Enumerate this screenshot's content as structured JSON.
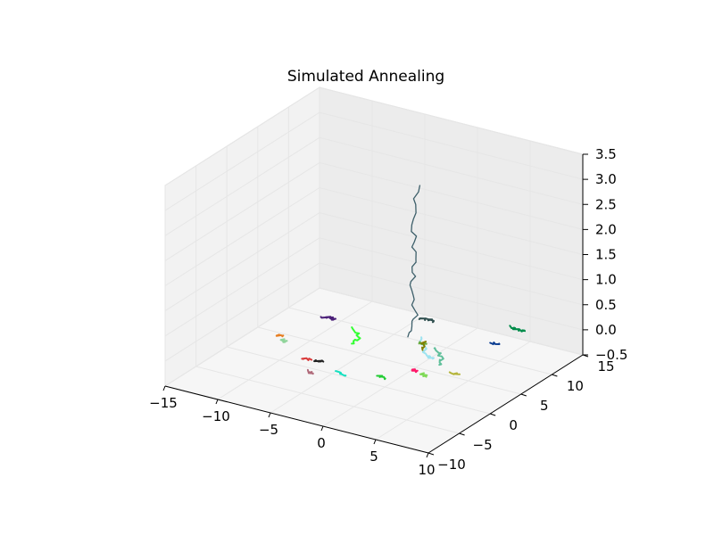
{
  "chart_data": {
    "type": "line3d",
    "title": "Simulated Annealing",
    "xlabel": "",
    "ylabel": "",
    "zlabel": "",
    "xlim": [
      -15,
      10
    ],
    "ylim": [
      -10,
      15
    ],
    "zlim": [
      -0.5,
      3.5
    ],
    "xticks": [
      "−15",
      "−10",
      "−5",
      "0",
      "5",
      "10"
    ],
    "yticks": [
      "−10",
      "−5",
      "0",
      "5",
      "10",
      "15"
    ],
    "zticks": [
      "−0.5",
      "0.0",
      "0.5",
      "1.0",
      "1.5",
      "2.0",
      "2.5",
      "3.0",
      "3.5"
    ],
    "grid": true,
    "series": [
      {
        "color": "#3d5f6a",
        "values": [
          [
            0.5,
            4.5,
            3.2
          ],
          [
            0.2,
            4.2,
            2.4
          ],
          [
            0.6,
            3.9,
            1.8
          ],
          [
            0.1,
            4.1,
            1.2
          ],
          [
            0.8,
            3.6,
            0.7
          ],
          [
            0.0,
            3.7,
            0.2
          ]
        ]
      },
      {
        "color": "#9de3f0",
        "values": [
          [
            1.8,
            2.6,
            0.4
          ],
          [
            2.6,
            2.3,
            0.1
          ],
          [
            2.9,
            2.8,
            0.0
          ]
        ]
      },
      {
        "color": "#5fbf9a",
        "values": [
          [
            3.4,
            2.2,
            0.3
          ],
          [
            3.9,
            2.6,
            0.1
          ],
          [
            4.0,
            2.0,
            0.0
          ]
        ]
      },
      {
        "color": "#2f4f4f",
        "values": [
          [
            -2.2,
            9.5,
            0.0
          ],
          [
            -1.6,
            9.8,
            0.0
          ],
          [
            -1.0,
            9.6,
            0.0
          ]
        ]
      },
      {
        "color": "#4b1f78",
        "values": [
          [
            -9.0,
            5.2,
            0.0
          ],
          [
            -8.4,
            5.6,
            0.0
          ],
          [
            -8.0,
            5.3,
            0.0
          ]
        ]
      },
      {
        "color": "#008c4a",
        "values": [
          [
            4.8,
            12.2,
            0.0
          ],
          [
            5.6,
            12.0,
            0.0
          ],
          [
            6.2,
            12.1,
            0.0
          ]
        ]
      },
      {
        "color": "#0b3d91",
        "values": [
          [
            5.2,
            8.2,
            0.0
          ],
          [
            5.8,
            8.6,
            0.0
          ]
        ]
      },
      {
        "color": "#e67e22",
        "values": [
          [
            -10.2,
            -0.2,
            0.0
          ],
          [
            -9.7,
            0.1,
            0.0
          ]
        ]
      },
      {
        "color": "#8fd49a",
        "values": [
          [
            -9.4,
            -0.6,
            0.0
          ],
          [
            -8.9,
            -1.0,
            0.0
          ]
        ]
      },
      {
        "color": "#33ff33",
        "values": [
          [
            -4.5,
            2.2,
            0.3
          ],
          [
            -3.8,
            2.4,
            0.1
          ],
          [
            -4.2,
            1.8,
            0.0
          ]
        ]
      },
      {
        "color": "#d93a3a",
        "values": [
          [
            -5.9,
            -3.2,
            0.0
          ],
          [
            -5.2,
            -3.0,
            0.0
          ]
        ]
      },
      {
        "color": "#222222",
        "values": [
          [
            -4.8,
            -3.0,
            0.0
          ],
          [
            -4.2,
            -2.8,
            0.0
          ]
        ]
      },
      {
        "color": "#b06a7a",
        "values": [
          [
            -4.2,
            -5.2,
            0.0
          ],
          [
            -3.6,
            -5.5,
            0.0
          ]
        ]
      },
      {
        "color": "#14e0c0",
        "values": [
          [
            -2.2,
            -4.0,
            0.0
          ],
          [
            -1.2,
            -4.3,
            0.0
          ]
        ]
      },
      {
        "color": "#22cc33",
        "values": [
          [
            1.0,
            -2.8,
            0.0
          ],
          [
            1.8,
            -3.0,
            0.0
          ]
        ]
      },
      {
        "color": "#ff1a6a",
        "values": [
          [
            2.6,
            0.0,
            0.0
          ],
          [
            3.2,
            -0.4,
            0.0
          ]
        ]
      },
      {
        "color": "#6aa83a",
        "values": [
          [
            0.2,
            5.0,
            0.0
          ],
          [
            0.9,
            5.2,
            0.0
          ]
        ]
      },
      {
        "color": "#808000",
        "values": [
          [
            1.0,
            4.6,
            0.1
          ],
          [
            1.3,
            3.9,
            0.0
          ]
        ]
      },
      {
        "color": "#7fd957",
        "values": [
          [
            3.8,
            -0.4,
            0.0
          ],
          [
            4.4,
            -0.8,
            0.0
          ]
        ]
      },
      {
        "color": "#b5b53c",
        "values": [
          [
            5.6,
            1.0,
            0.0
          ],
          [
            6.4,
            1.2,
            0.0
          ]
        ]
      }
    ]
  }
}
